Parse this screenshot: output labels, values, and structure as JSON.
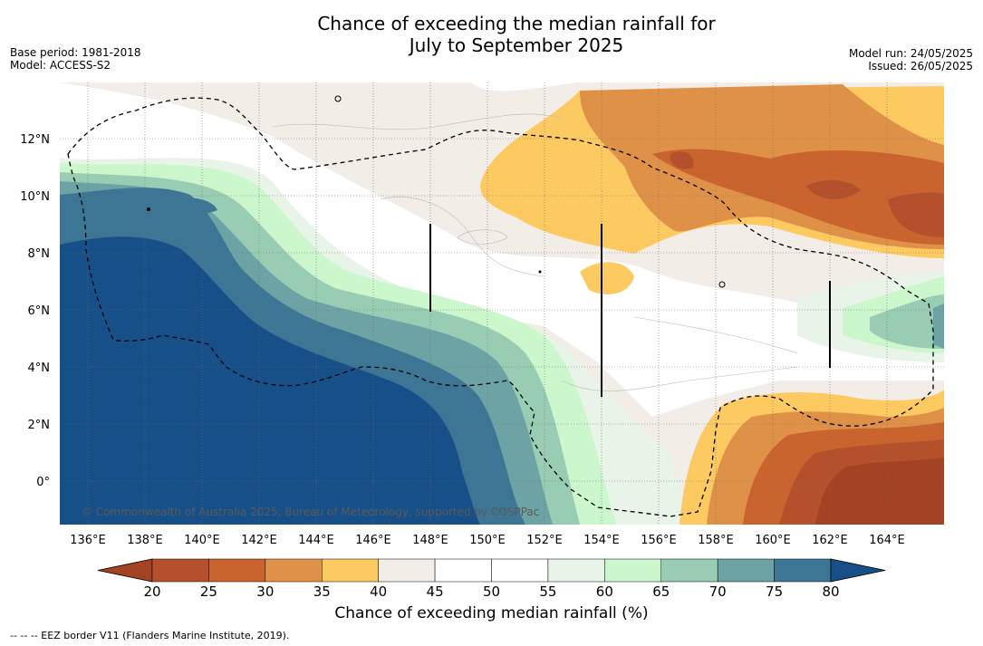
{
  "title_line1": "Chance of exceeding the median rainfall for",
  "title_line2": "July to September 2025",
  "base_period": "Base period: 1981-2018",
  "model": "Model: ACCESS-S2",
  "model_run": "Model run: 24/05/2025",
  "issued": "Issued: 26/05/2025",
  "credit": "© Commonwealth of Australia 2025, Bureau of Meteorology, supported by COSPPac",
  "footer": "-- -- -- EEZ border V11 (Flanders Marine Institute, 2019).",
  "colorbar": {
    "title": "Chance of exceeding median rainfall (%)",
    "ticks": [
      "20",
      "25",
      "30",
      "35",
      "40",
      "45",
      "50",
      "55",
      "60",
      "65",
      "70",
      "75",
      "80"
    ],
    "colors": [
      "#a34323",
      "#b4502b",
      "#c9642f",
      "#df9247",
      "#fdc961",
      "#f2ede6",
      "#ffffff",
      "#ffffff",
      "#e8f4e7",
      "#ccf7cd",
      "#99cdb3",
      "#6da3a5",
      "#3d7695",
      "#174f88"
    ]
  },
  "map": {
    "x_ticks": [
      "136°E",
      "138°E",
      "140°E",
      "142°E",
      "144°E",
      "146°E",
      "148°E",
      "150°E",
      "152°E",
      "154°E",
      "156°E",
      "158°E",
      "160°E",
      "162°E",
      "164°E"
    ],
    "y_ticks": [
      "12°N",
      "10°N",
      "8°N",
      "6°N",
      "4°N",
      "2°N",
      "0°"
    ]
  }
}
